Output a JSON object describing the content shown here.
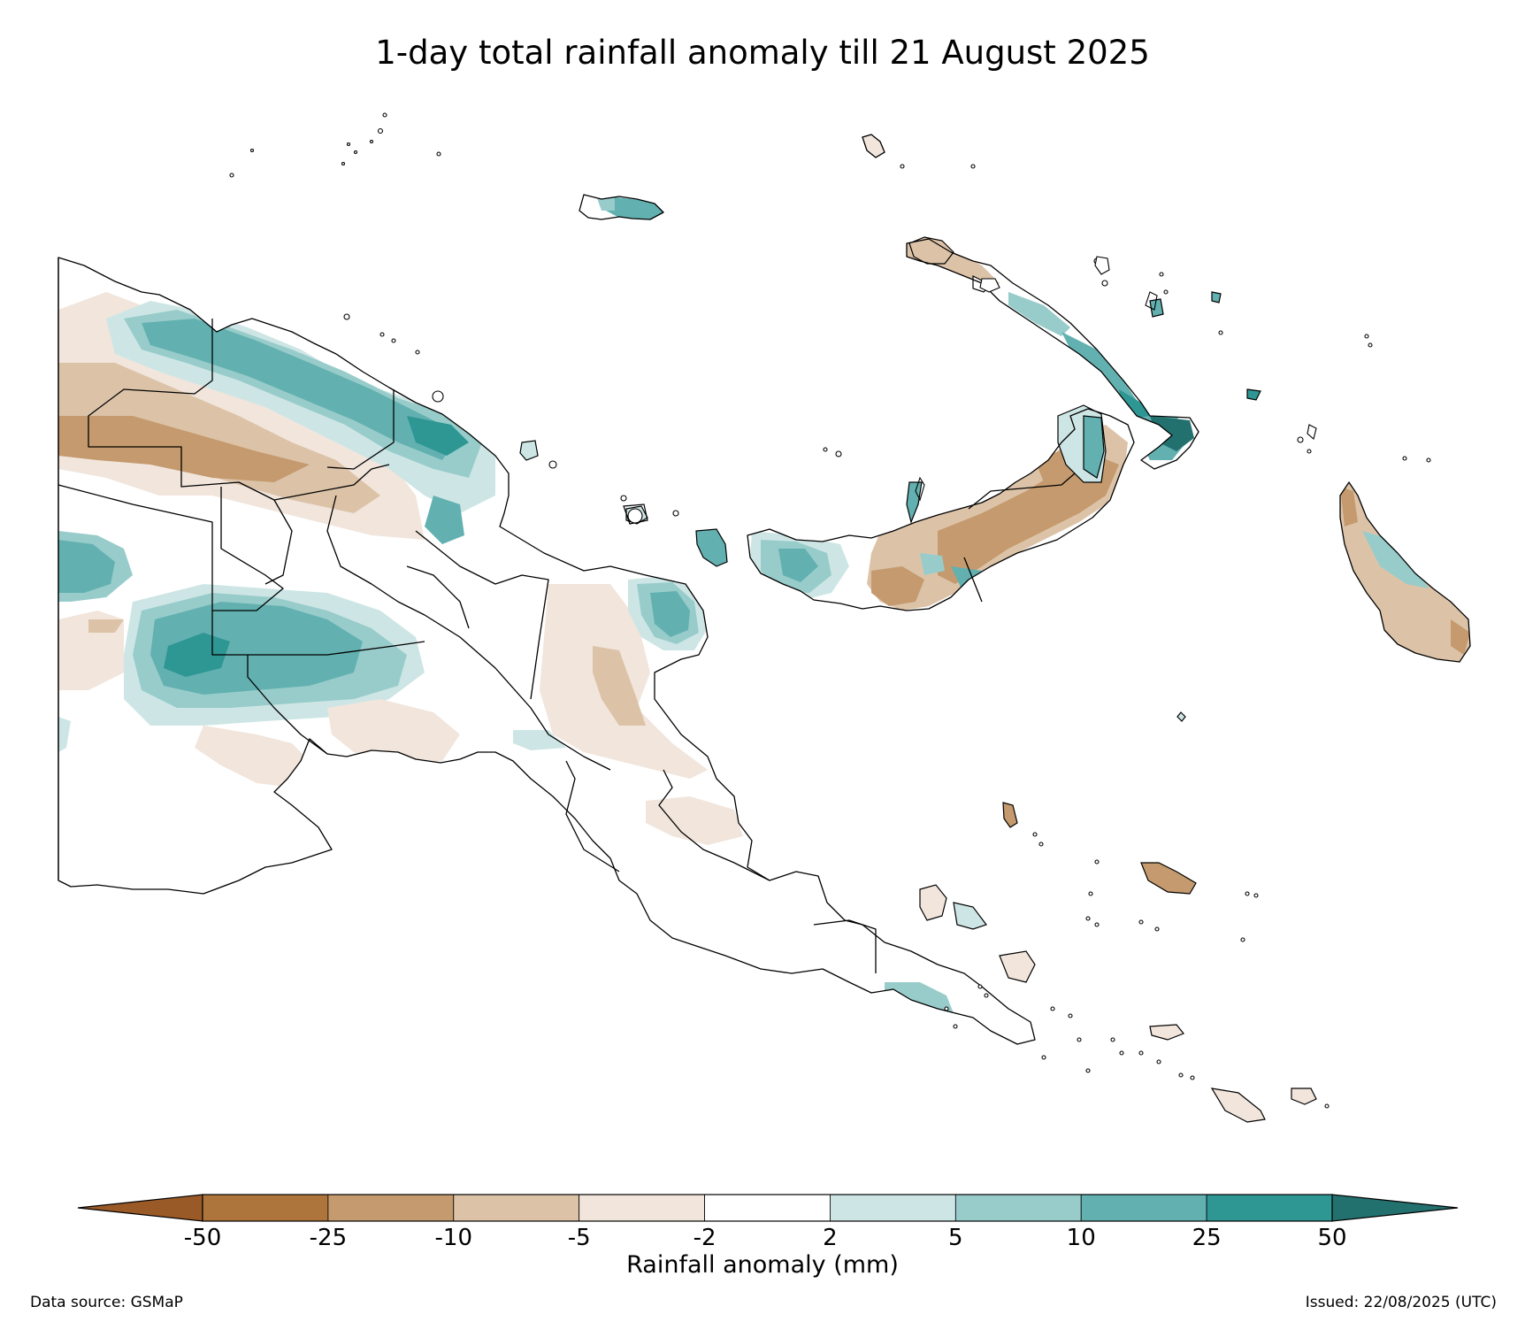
{
  "title": "1-day total rainfall anomaly till 21 August 2025",
  "colorbar": {
    "label": "Rainfall anomaly (mm)",
    "ticks": [
      "-50",
      "-25",
      "-10",
      "-5",
      "-2",
      "2",
      "5",
      "10",
      "25",
      "50"
    ],
    "bins": [
      {
        "range": "< -50",
        "color": "#9a5a28"
      },
      {
        "range": "-50 to -25",
        "color": "#ad743c"
      },
      {
        "range": "-25 to -10",
        "color": "#c49a6e"
      },
      {
        "range": "-10 to -5",
        "color": "#dcc3a8"
      },
      {
        "range": "-5 to -2",
        "color": "#f1e5dc"
      },
      {
        "range": "-2 to 2",
        "color": "#ffffff"
      },
      {
        "range": "2 to 5",
        "color": "#cde6e5"
      },
      {
        "range": "5 to 10",
        "color": "#98cccb"
      },
      {
        "range": "10 to 25",
        "color": "#62b1b0"
      },
      {
        "range": "25 to 50",
        "color": "#2e9693"
      },
      {
        "range": "> 50",
        "color": "#23716f"
      }
    ]
  },
  "footer": {
    "source": "Data source: GSMaP",
    "issued": "Issued: 22/08/2025 (UTC)"
  }
}
